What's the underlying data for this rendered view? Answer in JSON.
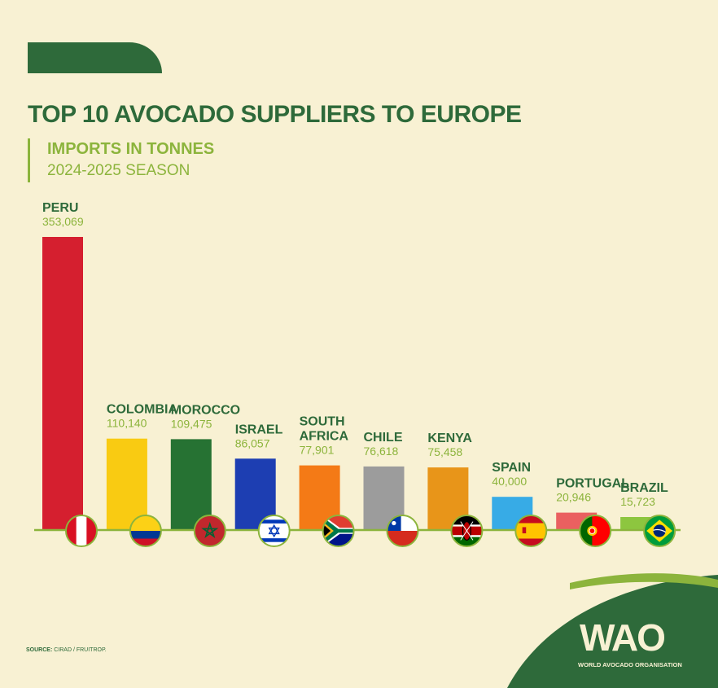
{
  "header": {
    "title": "TOP 10 AVOCADO SUPPLIERS TO EUROPE",
    "subtitle_line1": "IMPORTS IN TONNES",
    "subtitle_line2": "2024-2025 SEASON"
  },
  "footer": {
    "source_label": "SOURCE:",
    "source_text": "CIRAD / FRUITROP.",
    "logo_mark": "WAO",
    "logo_name": "WORLD AVOCADO ORGANISATION"
  },
  "colors": {
    "background": "#f8f1d3",
    "brand_green": "#2e6a3a",
    "accent_green": "#8cb43c"
  },
  "chart_data": {
    "type": "bar",
    "title": "TOP 10 AVOCADO SUPPLIERS TO EUROPE",
    "subtitle": "IMPORTS IN TONNES 2024-2025 SEASON",
    "xlabel": "",
    "ylabel": "",
    "ylim": [
      0,
      353069
    ],
    "grid": false,
    "categories": [
      "PERU",
      "COLOMBIA",
      "MOROCCO",
      "ISRAEL",
      "SOUTH AFRICA",
      "CHILE",
      "KENYA",
      "SPAIN",
      "PORTUGAL",
      "BRAZIL"
    ],
    "values": [
      353069,
      110140,
      109475,
      86057,
      77901,
      76618,
      75458,
      40000,
      20946,
      15723
    ],
    "value_labels": [
      "353,069",
      "110,140",
      "109,475",
      "86,057",
      "77,901",
      "76,618",
      "75,458",
      "40,000",
      "20,946",
      "15,723"
    ],
    "bar_colors": [
      "#d51f2f",
      "#f9cb12",
      "#267233",
      "#1d3eb2",
      "#f47a16",
      "#9c9c9c",
      "#e89519",
      "#37abe6",
      "#ea6060",
      "#8dc63f"
    ],
    "flags": [
      "peru-flag-icon",
      "colombia-flag-icon",
      "morocco-flag-icon",
      "israel-flag-icon",
      "south-africa-flag-icon",
      "chile-flag-icon",
      "kenya-flag-icon",
      "spain-flag-icon",
      "portugal-flag-icon",
      "brazil-flag-icon"
    ]
  }
}
